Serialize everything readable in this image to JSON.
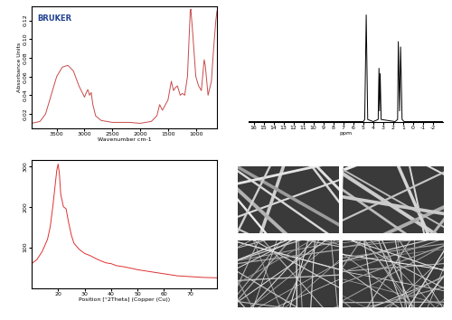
{
  "chart_data": [
    {
      "type": "line",
      "annotations": [
        "BRUKER"
      ],
      "xlabel": "Wavenumber cm-1",
      "ylabel": "Absorbance Units",
      "x": [
        3950,
        3800,
        3700,
        3600,
        3500,
        3400,
        3300,
        3200,
        3100,
        3000,
        2960,
        2940,
        2910,
        2880,
        2850,
        2800,
        2700,
        2500,
        2200,
        2000,
        1800,
        1700,
        1650,
        1600,
        1500,
        1440,
        1400,
        1370,
        1330,
        1280,
        1240,
        1200,
        1150,
        1100,
        1090,
        1060,
        1000,
        950,
        900,
        850,
        830,
        780,
        720,
        680,
        640,
        620
      ],
      "values": [
        0.01,
        0.012,
        0.02,
        0.04,
        0.06,
        0.07,
        0.072,
        0.066,
        0.05,
        0.038,
        0.044,
        0.046,
        0.04,
        0.043,
        0.03,
        0.018,
        0.013,
        0.011,
        0.011,
        0.01,
        0.012,
        0.018,
        0.03,
        0.024,
        0.035,
        0.055,
        0.045,
        0.048,
        0.05,
        0.04,
        0.042,
        0.04,
        0.06,
        0.13,
        0.132,
        0.11,
        0.06,
        0.05,
        0.045,
        0.078,
        0.072,
        0.04,
        0.055,
        0.09,
        0.12,
        0.13
      ],
      "color": "#c84a4a",
      "xlim": [
        3950,
        620
      ],
      "xticks": [
        3500,
        3000,
        2500,
        2000,
        1500,
        1000
      ],
      "ylim": [
        0.005,
        0.135
      ],
      "yticks": [
        0.02,
        0.04,
        0.06,
        0.08,
        {
          "value": 0.1,
          "label": "0.10"
        },
        0.12
      ]
    },
    {
      "type": "line",
      "xlabel": "ppm",
      "tick_labels": "x",
      "x": [
        16.5,
        5.0,
        4.85,
        4.7,
        4.55,
        4.0,
        3.5,
        3.42,
        3.36,
        3.3,
        3.2,
        1.8,
        1.55,
        1.48,
        1.35,
        1.25,
        1.1,
        0.9,
        -3
      ],
      "values": [
        0,
        0,
        0.02,
        1.0,
        0.02,
        0,
        0.02,
        0.5,
        0.1,
        0.45,
        0.02,
        0,
        0.02,
        0.75,
        0.1,
        0.7,
        0.02,
        0,
        0
      ],
      "color": "#000000",
      "xlim": [
        16.5,
        -3
      ],
      "xticks": [
        16,
        15,
        14,
        13,
        12,
        11,
        10,
        9,
        8,
        7,
        6,
        5,
        4,
        3,
        2,
        1,
        0,
        -1,
        -2
      ]
    },
    {
      "type": "line",
      "xlabel": "Position [°2Theta] (Copper (Cu))",
      "x": [
        10,
        12,
        14,
        16,
        17,
        18,
        19,
        19.5,
        20,
        20.5,
        21,
        22,
        23,
        24,
        25,
        26,
        28,
        30,
        32,
        35,
        38,
        40,
        42,
        45,
        48,
        50,
        55,
        60,
        65,
        70,
        75,
        80
      ],
      "values": [
        60,
        70,
        90,
        120,
        150,
        200,
        260,
        290,
        305,
        280,
        230,
        200,
        195,
        160,
        130,
        110,
        95,
        85,
        80,
        70,
        62,
        60,
        55,
        52,
        48,
        45,
        40,
        35,
        30,
        28,
        26,
        25
      ],
      "color": "#e03030",
      "xlim": [
        10,
        80
      ],
      "xticks": [
        20,
        30,
        40,
        50,
        60,
        70
      ],
      "ylim": [
        0,
        315
      ],
      "yticks": [
        100,
        200,
        300
      ]
    },
    {
      "type": "image"
    },
    {
      "type": "image"
    },
    {
      "type": "image"
    },
    {
      "type": "image"
    }
  ]
}
